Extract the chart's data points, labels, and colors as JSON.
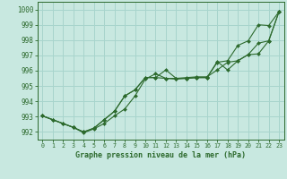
{
  "title": "Graphe pression niveau de la mer (hPa)",
  "bg_color": "#c8e8e0",
  "grid_color": "#a8d4cc",
  "line_color": "#2d6a2d",
  "marker_color": "#2d6a2d",
  "xlim": [
    -0.5,
    23.5
  ],
  "ylim": [
    991.5,
    1000.5
  ],
  "yticks": [
    992,
    993,
    994,
    995,
    996,
    997,
    998,
    999,
    1000
  ],
  "xticks": [
    0,
    1,
    2,
    3,
    4,
    5,
    6,
    7,
    8,
    9,
    10,
    11,
    12,
    13,
    14,
    15,
    16,
    17,
    18,
    19,
    20,
    21,
    22,
    23
  ],
  "line1_x": [
    0,
    1,
    2,
    3,
    4,
    5,
    6,
    7,
    8,
    9,
    10,
    11,
    12,
    13,
    14,
    15,
    16,
    17,
    18,
    19,
    20,
    21,
    22,
    23
  ],
  "line1_y": [
    993.05,
    992.8,
    992.55,
    992.3,
    991.95,
    992.2,
    992.55,
    993.05,
    993.5,
    994.35,
    995.45,
    995.8,
    995.5,
    995.45,
    995.5,
    995.55,
    995.55,
    996.55,
    996.65,
    997.65,
    997.95,
    999.0,
    998.95,
    999.85
  ],
  "line2_x": [
    0,
    1,
    2,
    3,
    4,
    5,
    6,
    7,
    8,
    9,
    10,
    11,
    12,
    13,
    14,
    15,
    16,
    17,
    18,
    19,
    20,
    21,
    22,
    23
  ],
  "line2_y": [
    993.05,
    992.8,
    992.55,
    992.3,
    992.0,
    992.25,
    992.8,
    993.35,
    994.35,
    994.75,
    995.55,
    995.55,
    995.5,
    995.5,
    995.55,
    995.6,
    995.6,
    996.05,
    996.55,
    996.65,
    997.05,
    997.1,
    997.95,
    999.85
  ],
  "line3_x": [
    0,
    3,
    4,
    5,
    6,
    7,
    8,
    9,
    10,
    11,
    12,
    13,
    14,
    15,
    16,
    17,
    18,
    19,
    20,
    21,
    22,
    23
  ],
  "line3_y": [
    993.05,
    992.3,
    992.0,
    992.25,
    992.8,
    993.35,
    994.35,
    994.75,
    995.55,
    995.55,
    996.05,
    995.5,
    995.5,
    995.55,
    995.55,
    996.6,
    996.05,
    996.65,
    997.05,
    997.8,
    997.95,
    999.85
  ]
}
